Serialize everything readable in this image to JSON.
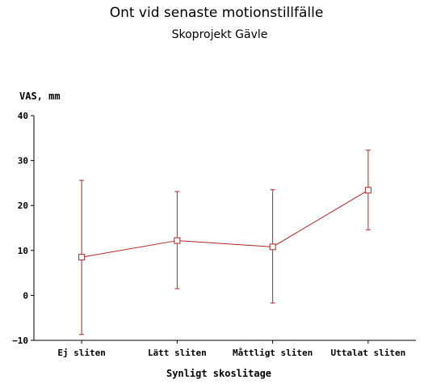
{
  "chart_data": {
    "type": "line",
    "title": "Ont vid senaste motionstillfälle",
    "subtitle": "Skoprojekt Gävle",
    "ylabel": "VAS, mm",
    "xlabel": "Synligt skoslitage",
    "categories": [
      "Ej sliten",
      "Lätt sliten",
      "Måttligt sliten",
      "Uttalat sliten"
    ],
    "ylim": [
      -10,
      40
    ],
    "yticks": [
      -10,
      0,
      10,
      20,
      30,
      40
    ],
    "grid": false,
    "series": [
      {
        "values": [
          8.5,
          12.2,
          10.8,
          23.4
        ],
        "error_low": [
          -8.7,
          1.5,
          -1.7,
          14.6
        ],
        "error_high": [
          25.6,
          23.1,
          23.5,
          32.3
        ],
        "color": "#b22222",
        "marker": "open-square"
      }
    ]
  }
}
